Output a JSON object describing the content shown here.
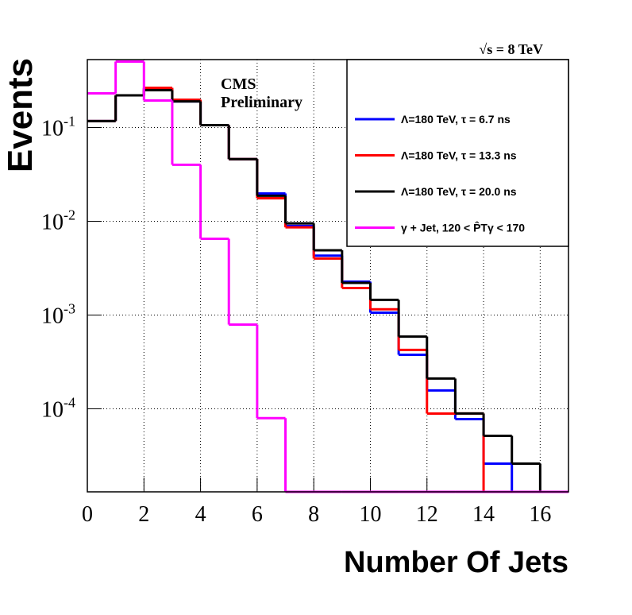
{
  "chart_data": {
    "type": "histogram-step",
    "ylabel": "Events",
    "xlabel": "Number Of Jets",
    "annotations": [
      "√s = 8 TeV",
      "CMS",
      "Preliminary"
    ],
    "bins": [
      0,
      1,
      2,
      3,
      4,
      5,
      6,
      7,
      8,
      9,
      10,
      11,
      12,
      13,
      14,
      15,
      16,
      17
    ],
    "xlim": [
      0,
      17
    ],
    "xticks": [
      0,
      2,
      4,
      6,
      8,
      10,
      12,
      14,
      16
    ],
    "log_y": true,
    "ylim": [
      1.3e-05,
      0.53
    ],
    "yticks": [
      {
        "value": 0.1,
        "label": "10",
        "exponent": "-1"
      },
      {
        "value": 0.01,
        "label": "10",
        "exponent": "-2"
      },
      {
        "value": 0.001,
        "label": "10",
        "exponent": "-3"
      },
      {
        "value": 0.0001,
        "label": "10",
        "exponent": "-4"
      }
    ],
    "grid": true,
    "legend_position": "upper-right",
    "series": [
      {
        "name": "Λ=180 TeV, τ = 6.7 ns",
        "color": "#0000ff",
        "values": [
          0.117,
          0.22,
          0.26,
          0.19,
          0.106,
          0.046,
          0.0198,
          0.0089,
          0.0043,
          0.00227,
          0.00106,
          0.000377,
          0.000157,
          7.76e-05,
          2.6e-05,
          0,
          0
        ]
      },
      {
        "name": "Λ=180 TeV, τ = 13.3 ns",
        "color": "#ff0000",
        "values": [
          0.117,
          0.22,
          0.265,
          0.198,
          0.106,
          0.046,
          0.0176,
          0.0086,
          0.004,
          0.00194,
          0.00115,
          0.000424,
          8.89e-05,
          8.9e-05,
          0,
          0,
          0
        ]
      },
      {
        "name": "Λ=180 TeV, τ = 20.0 ns",
        "color": "#000000",
        "values": [
          0.117,
          0.22,
          0.25,
          0.19,
          0.106,
          0.046,
          0.0187,
          0.0095,
          0.0049,
          0.0022,
          0.00145,
          0.000589,
          0.00021,
          8.9e-05,
          5.15e-05,
          2.6e-05,
          0
        ]
      },
      {
        "name": "γ + Jet, 120 < P̂Tγ < 170",
        "color": "#ff00ff",
        "values": [
          0.231,
          0.505,
          0.194,
          0.04,
          0.0065,
          0.00079,
          7.94e-05,
          0,
          0,
          0,
          0,
          0,
          0,
          0,
          0,
          0,
          0
        ]
      }
    ]
  }
}
